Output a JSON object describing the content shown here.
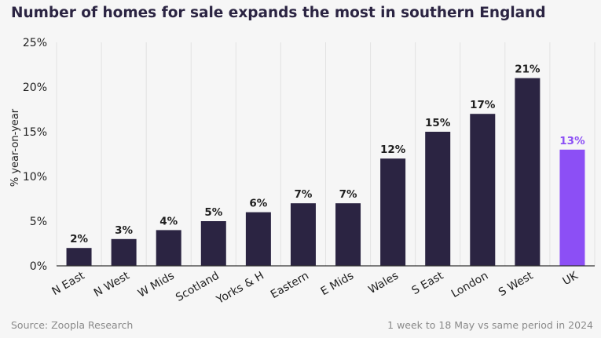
{
  "chart_data": {
    "type": "bar",
    "title": "Number of homes for sale expands the most in southern England",
    "ylabel": "% year-on-year",
    "xlabel": "",
    "ylim": [
      0,
      25
    ],
    "yticks": [
      0,
      5,
      10,
      15,
      20,
      25
    ],
    "ytick_labels": [
      "0%",
      "5%",
      "10%",
      "15%",
      "20%",
      "25%"
    ],
    "categories": [
      "N East",
      "N West",
      "W Mids",
      "Scotland",
      "Yorks & H",
      "Eastern",
      "E Mids",
      "Wales",
      "S East",
      "London",
      "S West",
      "UK"
    ],
    "values": [
      2,
      3,
      4,
      5,
      6,
      7,
      7,
      12,
      15,
      17,
      21,
      13
    ],
    "value_labels": [
      "2%",
      "3%",
      "4%",
      "5%",
      "6%",
      "7%",
      "7%",
      "12%",
      "15%",
      "17%",
      "21%",
      "13%"
    ],
    "highlight_category": "UK",
    "grid": "vertical",
    "colors": {
      "bar": "#2b2442",
      "highlight": "#8c4ff5",
      "text": "#1f1f1f",
      "axis": "#333333",
      "grid": "#e2e2e2"
    }
  },
  "footer": {
    "source": "Source: Zoopla Research",
    "period": "1 week to 18 May vs same period in 2024"
  }
}
